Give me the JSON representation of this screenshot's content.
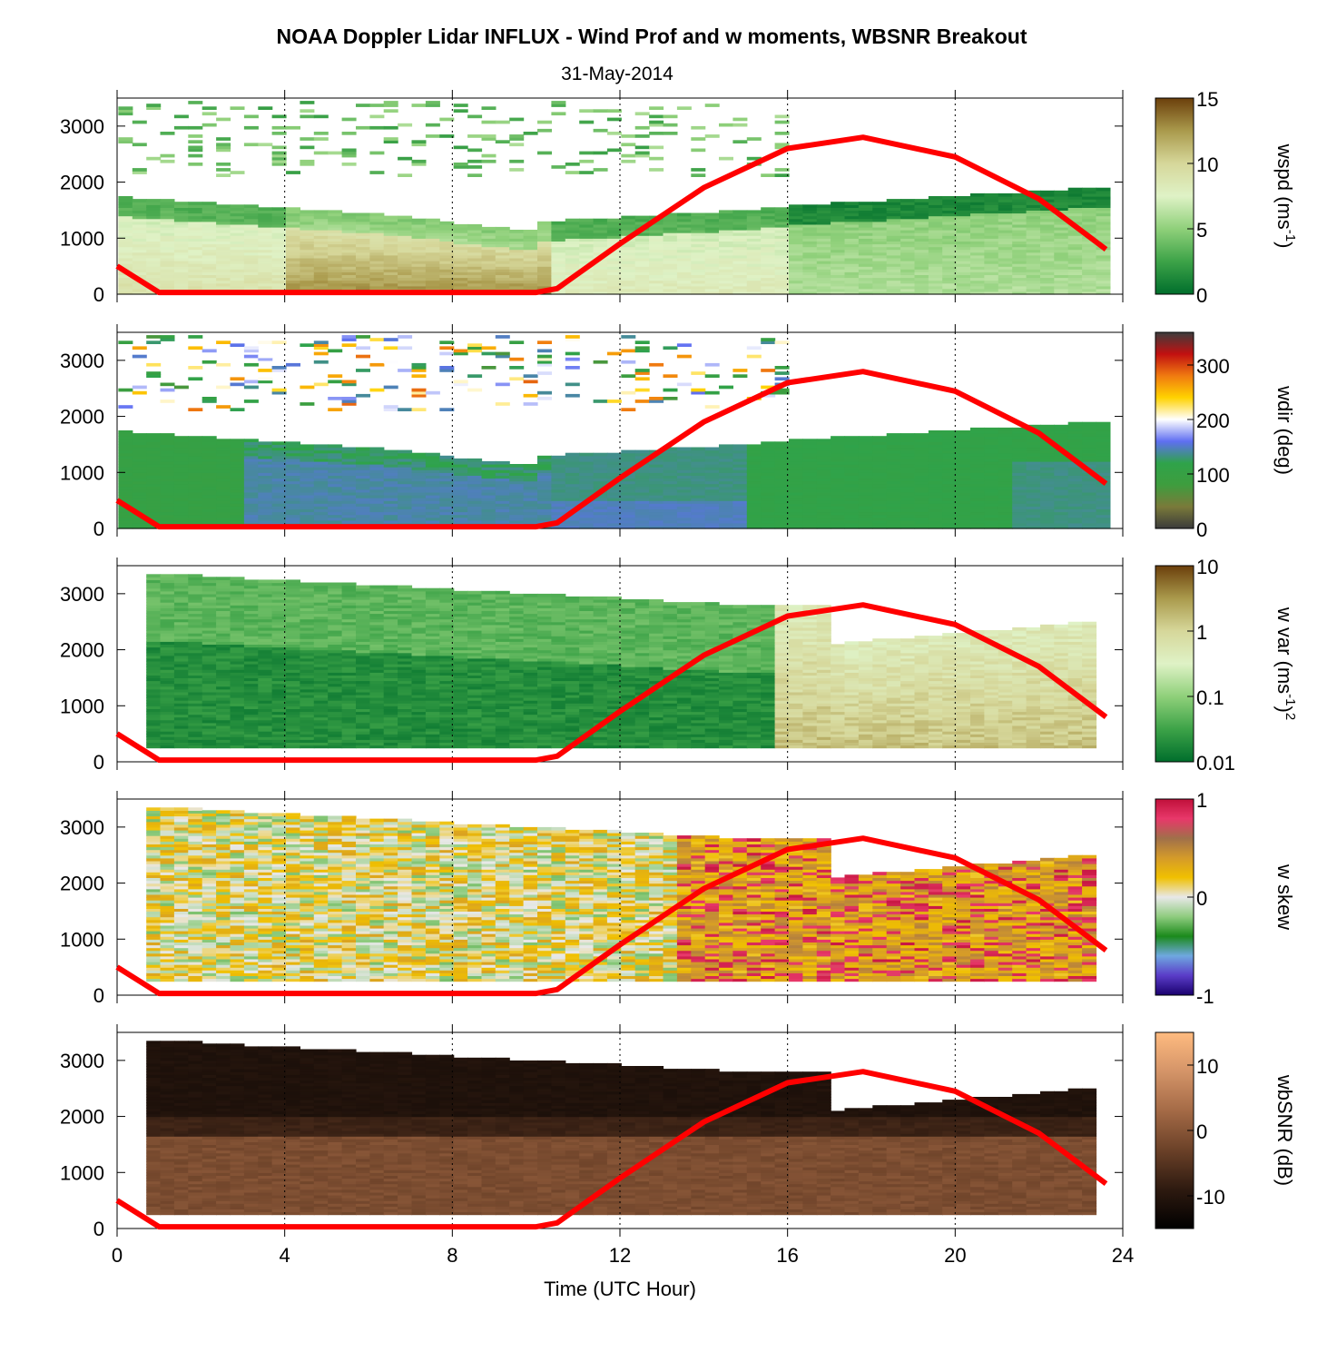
{
  "title": "NOAA Doppler Lidar INFLUX - Wind Prof and w moments, WBSNR Breakout",
  "subtitle": "31-May-2014",
  "xlabel": "Time (UTC Hour)",
  "chart_data": {
    "type": "heatmap",
    "title": "NOAA Doppler Lidar INFLUX - Wind Prof and w moments, WBSNR Breakout",
    "subtitle": "31-May-2014",
    "xlabel": "Time (UTC Hour)",
    "xlim": [
      0,
      24
    ],
    "xticks": [
      0,
      4,
      8,
      12,
      16,
      20,
      24
    ],
    "ylim": [
      0,
      3500
    ],
    "yticks": [
      0,
      1000,
      2000,
      3000
    ],
    "x_gridlines": [
      4,
      8,
      12,
      16,
      20,
      24
    ],
    "boundary_layer_curve": {
      "color": "#ff0000",
      "x": [
        0,
        1,
        2,
        4,
        6,
        8,
        10,
        10.5,
        12,
        14,
        16,
        17.8,
        20,
        22,
        23.6
      ],
      "y": [
        500,
        30,
        30,
        30,
        30,
        30,
        30,
        100,
        900,
        1900,
        2600,
        2800,
        2450,
        1700,
        800
      ]
    },
    "panels": [
      {
        "name": "wspd",
        "colorbar_label": "wspd (ms-1)",
        "colorbar_label_main": "wspd (ms",
        "colorbar_label_sup": "-1",
        "colorbar_label_end": ")",
        "colorbar_ticks": [
          "0",
          "5",
          "10",
          "15"
        ],
        "colorbar_range": [
          0,
          15
        ],
        "colormap": [
          "#006e2c",
          "#3da348",
          "#8fd07a",
          "#dff2c6",
          "#d6d79a",
          "#aa9a4c",
          "#6b3f0b"
        ]
      },
      {
        "name": "wdir",
        "colorbar_label": "wdir (deg)",
        "colorbar_label_main": "wdir (deg)",
        "colorbar_label_sup": "",
        "colorbar_label_end": "",
        "colorbar_ticks": [
          "0",
          "100",
          "200",
          "300"
        ],
        "colorbar_range": [
          0,
          360
        ],
        "colormap": [
          "#3b3b3b",
          "#7a7a3a",
          "#3e9d3e",
          "#2fa34a",
          "#5f6ff2",
          "#ffffff",
          "#ffd200",
          "#f07a10",
          "#c21010",
          "#3c3c3c"
        ]
      },
      {
        "name": "wvar",
        "colorbar_label": "w var (ms-1)2",
        "colorbar_label_main": "w var (ms",
        "colorbar_label_sup": "-1",
        "colorbar_label_end": ")",
        "colorbar_label_sup2": "2",
        "colorbar_ticks": [
          "0.01",
          "0.1",
          "1",
          "10"
        ],
        "colorbar_scale": "log",
        "colorbar_range": [
          0.01,
          10
        ],
        "colormap": [
          "#006e2c",
          "#3da348",
          "#8fd07a",
          "#dff2c6",
          "#d6d79a",
          "#aa9a4c",
          "#6b3f0b"
        ]
      },
      {
        "name": "wskew",
        "colorbar_label": "w skew",
        "colorbar_label_main": "w skew",
        "colorbar_label_sup": "",
        "colorbar_label_end": "",
        "colorbar_ticks": [
          "-1",
          "0",
          "1"
        ],
        "colorbar_range": [
          -1,
          1
        ],
        "colormap": [
          "#1a006e",
          "#5a3cc8",
          "#6fa8e0",
          "#1b8a1b",
          "#8fcc7f",
          "#e8e8e8",
          "#f0c000",
          "#d49a2a",
          "#a0704a",
          "#e8386a",
          "#c0103a"
        ]
      },
      {
        "name": "wbSNR",
        "colorbar_label": "wbSNR (dB)",
        "colorbar_label_main": "wbSNR (dB)",
        "colorbar_label_sup": "",
        "colorbar_label_end": "",
        "colorbar_ticks": [
          "-10",
          "0",
          "10"
        ],
        "colorbar_range": [
          -15,
          15
        ],
        "colormap": [
          "#000000",
          "#2e1a10",
          "#6b4128",
          "#a46a46",
          "#d49468",
          "#ffbb80"
        ]
      }
    ]
  }
}
